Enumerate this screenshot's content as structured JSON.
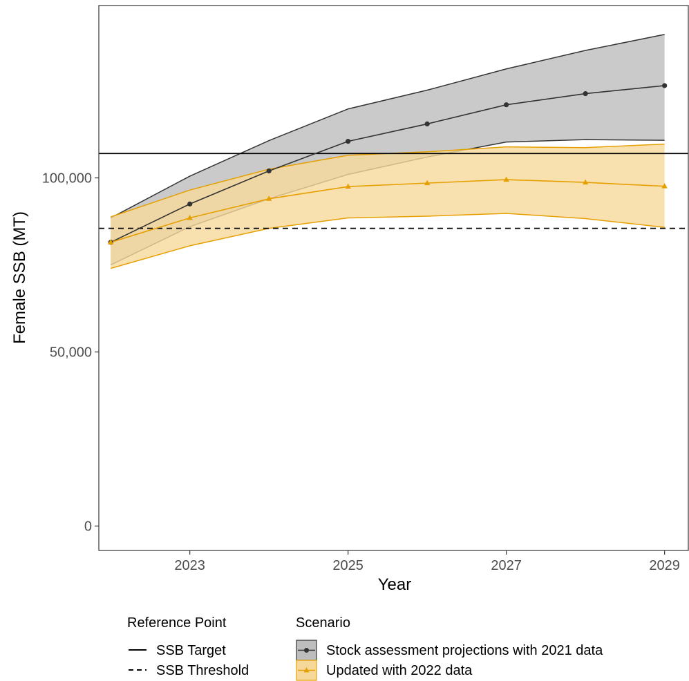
{
  "chart_data": {
    "type": "line",
    "xlabel": "Year",
    "ylabel": "Female SSB (MT)",
    "xlim": [
      2021.85,
      2029.3
    ],
    "ylim": [
      -7000,
      149500
    ],
    "x_ticks": [
      2023,
      2025,
      2027,
      2029
    ],
    "x_tick_labels": [
      "2023",
      "2025",
      "2027",
      "2029"
    ],
    "y_ticks": [
      0,
      50000,
      100000
    ],
    "y_tick_labels": [
      "0",
      "50,000",
      "100,000"
    ],
    "grid": false,
    "x": [
      2022,
      2023,
      2024,
      2025,
      2026,
      2027,
      2028,
      2029
    ],
    "series": [
      {
        "name": "Stock assessment projections with 2021 data",
        "color": "#333333",
        "fill": "#bdbdbd",
        "marker": "circle",
        "values": [
          81500,
          92500,
          102000,
          110500,
          115500,
          121000,
          124200,
          126500
        ],
        "lower": [
          75000,
          86000,
          94000,
          101000,
          106000,
          110300,
          111000,
          110800
        ],
        "upper": [
          88500,
          100500,
          110700,
          119800,
          125200,
          131300,
          136600,
          141200
        ]
      },
      {
        "name": "Updated with 2022 data",
        "color": "#E69F00",
        "fill": "#f6d99a",
        "marker": "triangle",
        "values": [
          81500,
          88500,
          94000,
          97500,
          98500,
          99500,
          98700,
          97600
        ],
        "lower": [
          74000,
          80500,
          85500,
          88500,
          89000,
          89800,
          88300,
          85800
        ],
        "upper": [
          88800,
          96500,
          102500,
          106500,
          107500,
          108900,
          108700,
          109700
        ]
      }
    ],
    "reference_lines": [
      {
        "name": "SSB Target",
        "value": 107000,
        "style": "solid",
        "color": "#000000"
      },
      {
        "name": "SSB Threshold",
        "value": 85500,
        "style": "dashed",
        "color": "#000000"
      }
    ],
    "legend_placement": "bottom",
    "legend": {
      "reference_title": "Reference Point",
      "reference_items": [
        "SSB Target",
        "SSB Threshold"
      ],
      "scenario_title": "Scenario",
      "scenario_items": [
        "Stock assessment projections with 2021 data",
        "Updated with 2022 data"
      ]
    }
  }
}
